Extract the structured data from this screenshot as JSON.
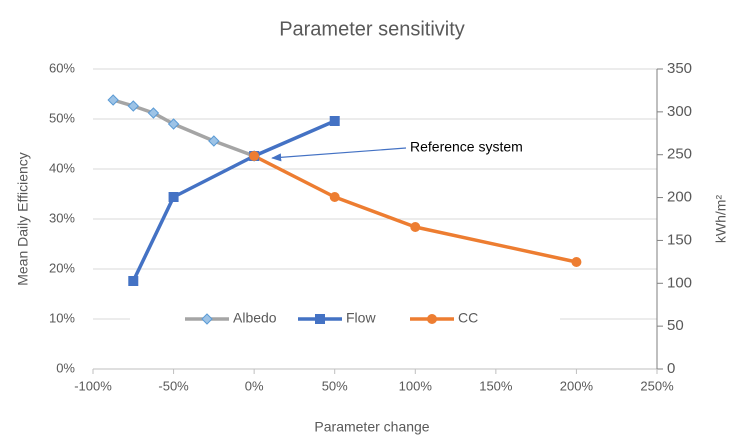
{
  "chart_data": {
    "type": "line",
    "title": "Parameter sensitivity",
    "x_label": "Parameter change",
    "y_label": "Mean Daily Efficiency",
    "y2_label": "kWh/m²",
    "xlim": [
      -100,
      250
    ],
    "xticks": [
      {
        "value": -100,
        "label": "-100%"
      },
      {
        "value": -50,
        "label": "-50%"
      },
      {
        "value": 0,
        "label": "0%"
      },
      {
        "value": 50,
        "label": "50%"
      },
      {
        "value": 100,
        "label": "100%"
      },
      {
        "value": 150,
        "label": "150%"
      },
      {
        "value": 200,
        "label": "200%"
      },
      {
        "value": 250,
        "label": "250%"
      }
    ],
    "ylim": [
      0,
      60
    ],
    "yticks": [
      {
        "value": 0,
        "label": "0%"
      },
      {
        "value": 10,
        "label": "10%"
      },
      {
        "value": 20,
        "label": "20%"
      },
      {
        "value": 30,
        "label": "30%"
      },
      {
        "value": 40,
        "label": "40%"
      },
      {
        "value": 50,
        "label": "50%"
      },
      {
        "value": 60,
        "label": "60%"
      }
    ],
    "y2lim": [
      0,
      350
    ],
    "y2ticks": [
      0,
      50,
      100,
      150,
      200,
      250,
      300,
      350
    ],
    "grid": true,
    "legend": "bottom",
    "series": [
      {
        "name": "Albedo",
        "color": "#a5a5a5",
        "marker_color": "#5b9bd5",
        "marker": "diamond",
        "x": [
          -87.5,
          -75,
          -62.5,
          -50,
          -25,
          0
        ],
        "values": [
          53.8,
          52.6,
          51.2,
          49,
          45.6,
          42.6
        ]
      },
      {
        "name": "Flow",
        "color": "#4472c4",
        "marker_color": "#4472c4",
        "marker": "square",
        "x": [
          -75,
          -50,
          0,
          50
        ],
        "values": [
          17.6,
          34.4,
          42.6,
          49.6
        ]
      },
      {
        "name": "CC",
        "color": "#ed7d31",
        "marker_color": "#ed7d31",
        "marker": "circle",
        "x": [
          0,
          50,
          100,
          200
        ],
        "values": [
          42.6,
          34.4,
          28.4,
          21.4
        ]
      }
    ],
    "annotations": [
      {
        "text": "Reference system",
        "x": 0,
        "y": 42.6
      }
    ]
  }
}
